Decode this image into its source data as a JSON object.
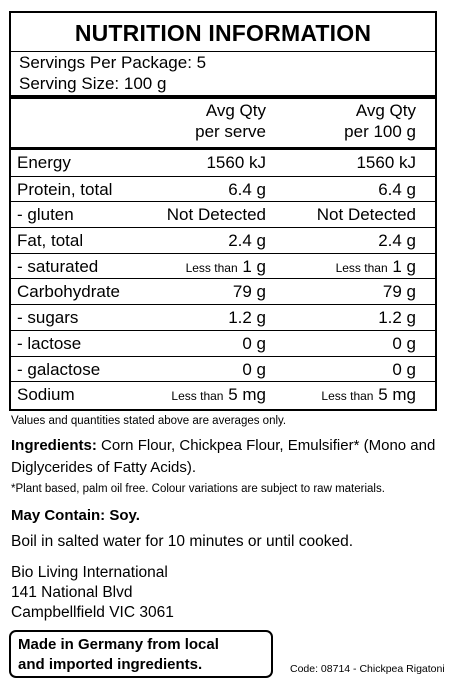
{
  "panel": {
    "title": "NUTRITION INFORMATION",
    "servings_per_package": "Servings Per Package: 5",
    "serving_size": "Serving Size: 100 g",
    "col1_line1": "Avg Qty",
    "col1_line2": "per serve",
    "col2_line1": "Avg Qty",
    "col2_line2": "per 100 g",
    "rows": [
      {
        "label": "Energy",
        "v1_prefix": "",
        "v1": "1560 kJ",
        "v2_prefix": "",
        "v2": "1560 kJ"
      },
      {
        "label": "Protein, total",
        "v1_prefix": "",
        "v1": "6.4 g",
        "v2_prefix": "",
        "v2": "6.4 g"
      },
      {
        "label": "- gluten",
        "v1_prefix": "",
        "v1": "Not Detected",
        "v2_prefix": "",
        "v2": "Not Detected"
      },
      {
        "label": "Fat, total",
        "v1_prefix": "",
        "v1": "2.4 g",
        "v2_prefix": "",
        "v2": "2.4 g"
      },
      {
        "label": "- saturated",
        "v1_prefix": "Less than",
        "v1": "1 g",
        "v2_prefix": "Less than",
        "v2": "1 g"
      },
      {
        "label": "Carbohydrate",
        "v1_prefix": "",
        "v1": "79 g",
        "v2_prefix": "",
        "v2": "79 g"
      },
      {
        "label": "- sugars",
        "v1_prefix": "",
        "v1": "1.2 g",
        "v2_prefix": "",
        "v2": "1.2 g"
      },
      {
        "label": "- lactose",
        "v1_prefix": "",
        "v1": "0 g",
        "v2_prefix": "",
        "v2": "0 g"
      },
      {
        "label": "- galactose",
        "v1_prefix": "",
        "v1": "0 g",
        "v2_prefix": "",
        "v2": "0 g"
      },
      {
        "label": "Sodium",
        "v1_prefix": "Less than",
        "v1": "5 mg",
        "v2_prefix": "Less than",
        "v2": "5 mg"
      }
    ]
  },
  "footnote": "Values and quantities stated above are averages only.",
  "ingredients": {
    "heading": "Ingredients:",
    "text": "Corn Flour, Chickpea Flour, Emulsifier* (Mono and Diglycerides of Fatty Acids)."
  },
  "plant_note": "*Plant based, palm oil free. Colour variations are subject to raw materials.",
  "may_contain": "May Contain: Soy.",
  "instructions": "Boil in salted water for 10 minutes or until cooked.",
  "address": {
    "line1": "Bio Living International",
    "line2": "141 National Blvd",
    "line3": "Campbellfield VIC 3061"
  },
  "made_in": {
    "line1": "Made in Germany from local",
    "line2": "and imported ingredients."
  },
  "code": "Code: 08714 - Chickpea Rigatoni"
}
